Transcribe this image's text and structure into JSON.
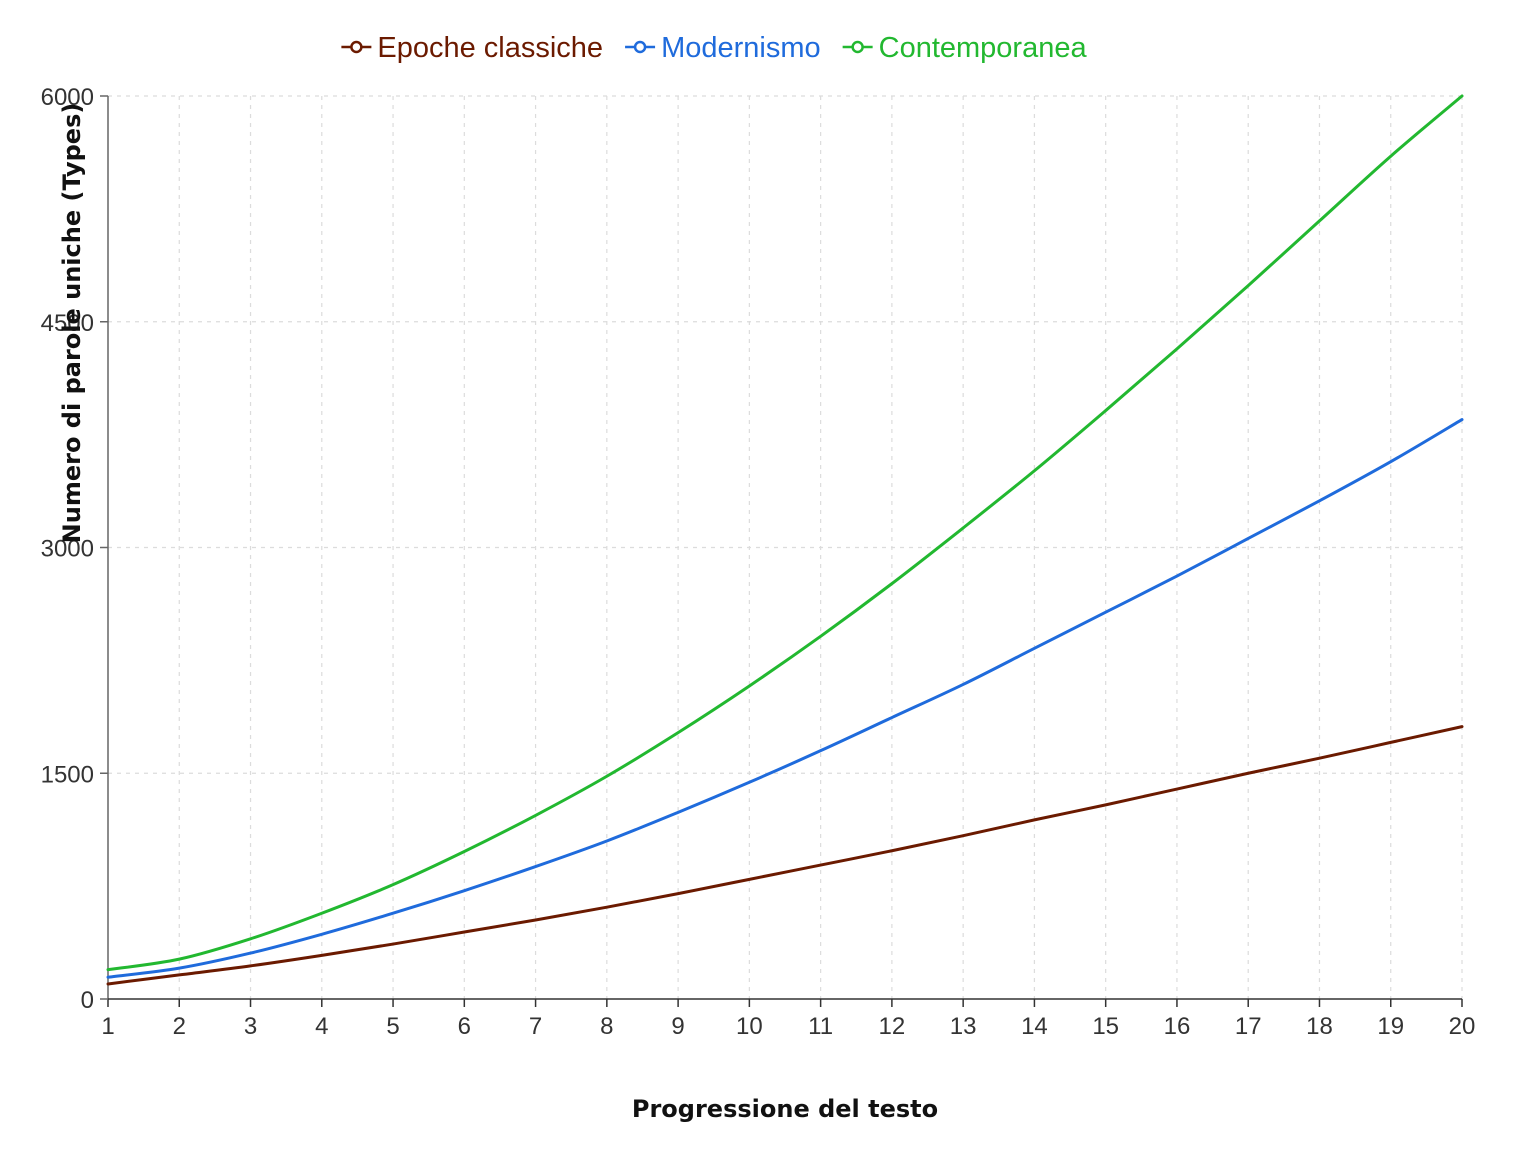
{
  "chart_data": {
    "type": "line",
    "title": "",
    "xlabel": "Progressione del testo",
    "ylabel": "Numero di parole uniche (Types)",
    "xlim": [
      1,
      20
    ],
    "ylim": [
      0,
      6000
    ],
    "x_ticks": [
      1,
      2,
      3,
      4,
      5,
      6,
      7,
      8,
      9,
      10,
      11,
      12,
      13,
      14,
      15,
      16,
      17,
      18,
      19,
      20
    ],
    "y_ticks": [
      0,
      1500,
      3000,
      4500,
      6000
    ],
    "grid": true,
    "legend_position": "top",
    "x": [
      1,
      2,
      3,
      4,
      5,
      6,
      7,
      8,
      9,
      10,
      11,
      12,
      13,
      14,
      15,
      16,
      17,
      18,
      19,
      20
    ],
    "series": [
      {
        "name": "Epoche classiche",
        "color": "#6b1a00",
        "values": [
          100,
          160,
          220,
          290,
          365,
          445,
          525,
          610,
          700,
          795,
          890,
          985,
          1085,
          1190,
          1290,
          1395,
          1500,
          1600,
          1705,
          1810
        ]
      },
      {
        "name": "Modernismo",
        "color": "#1f6bdc",
        "values": [
          145,
          205,
          305,
          430,
          570,
          720,
          880,
          1050,
          1240,
          1440,
          1650,
          1870,
          2090,
          2330,
          2570,
          2810,
          3060,
          3310,
          3570,
          3850
        ]
      },
      {
        "name": "Contemporanea",
        "color": "#22b830",
        "values": [
          195,
          265,
          400,
          570,
          760,
          980,
          1220,
          1480,
          1770,
          2080,
          2410,
          2760,
          3130,
          3510,
          3910,
          4320,
          4740,
          5170,
          5600,
          6000
        ]
      }
    ]
  }
}
